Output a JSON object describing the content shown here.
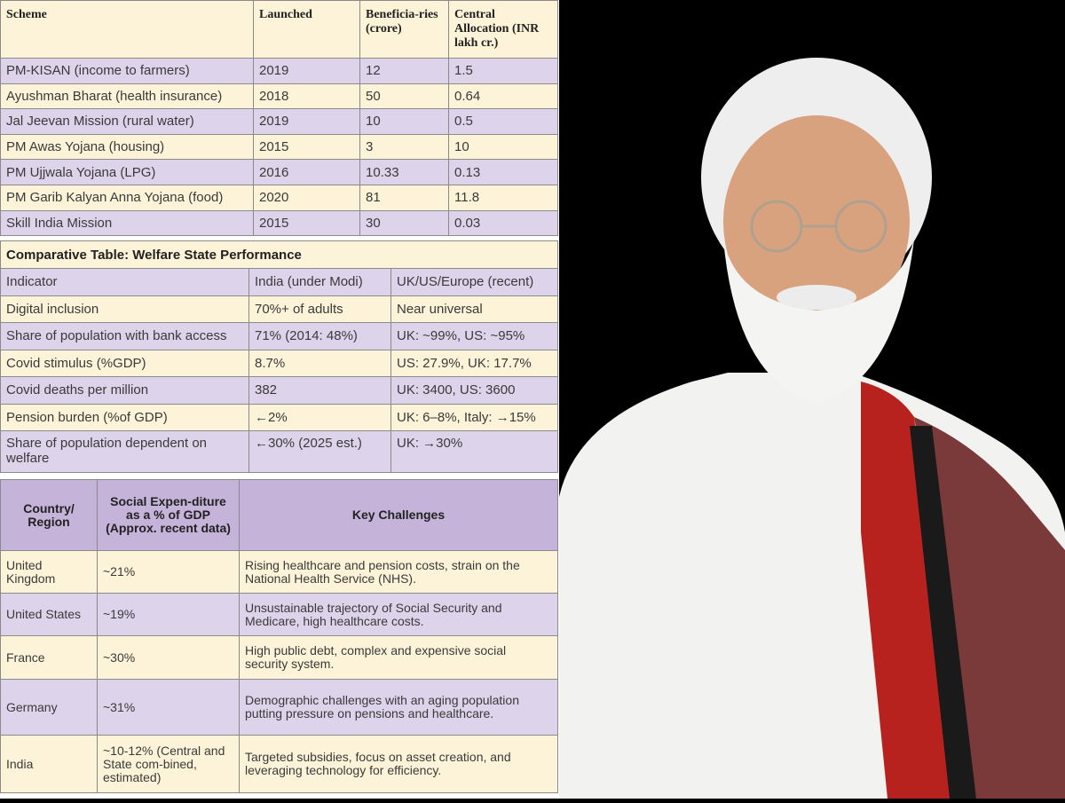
{
  "schemes_table": {
    "headers": [
      "Scheme",
      "Launched",
      "Beneficia-ries (crore)",
      "Central Allocation (INR lakh cr.)"
    ],
    "rows": [
      [
        "PM-KISAN (income to farmers)",
        "2019",
        "12",
        "1.5"
      ],
      [
        "Ayushman Bharat (health insurance)",
        "2018",
        "50",
        "0.64"
      ],
      [
        "Jal Jeevan Mission (rural water)",
        "2019",
        "10",
        "0.5"
      ],
      [
        "PM Awas Yojana (housing)",
        "2015",
        "3",
        "10"
      ],
      [
        "PM Ujjwala Yojana (LPG)",
        "2016",
        "10.33",
        "0.13"
      ],
      [
        "PM Garib Kalyan Anna Yojana (food)",
        "2020",
        "81",
        "11.8"
      ],
      [
        "Skill India Mission",
        "2015",
        "30",
        "0.03"
      ]
    ]
  },
  "comparative_table": {
    "title": "Comparative Table: Welfare State Performance",
    "headers": [
      "Indicator",
      "India (under Modi)",
      "UK/US/Europe (recent)"
    ],
    "rows": [
      [
        "Digital inclusion",
        "70%+ of adults",
        "Near universal"
      ],
      [
        "Share of population with bank access",
        "71% (2014: 48%)",
        "UK: ~99%, US: ~95%"
      ],
      [
        "Covid stimulus (%GDP)",
        "8.7%",
        "US: 27.9%, UK: 17.7%"
      ],
      [
        "Covid deaths per million",
        "382",
        "UK: 3400, US: 3600"
      ],
      [
        "Pension burden (%of GDP)",
        "←2%",
        "UK: 6–8%, Italy: →15%"
      ],
      [
        "Share of population dependent on welfare",
        "←30% (2025 est.)",
        "UK: →30%"
      ]
    ]
  },
  "social_table": {
    "headers": [
      "Country/ Region",
      "Social Expen-diture as a % of GDP (Approx. recent data)",
      "Key Challenges"
    ],
    "rows": [
      [
        "United Kingdom",
        "~21%",
        "Rising healthcare and pension costs, strain on the National Health Service (NHS)."
      ],
      [
        "United States",
        "~19%",
        "Unsustainable trajectory of Social Security and Medicare, high healthcare costs."
      ],
      [
        "France",
        "~30%",
        "High public debt, complex and expensive social security system."
      ],
      [
        "Germany",
        "~31%",
        "Demographic challenges with an aging population putting pressure on pensions and healthcare."
      ],
      [
        "India",
        "~10-12% (Central and State com-bined, estimated)",
        "Targeted subsidies, focus on asset creation, and leveraging technology for efficiency."
      ]
    ]
  },
  "colors": {
    "cream": "#fdf3d8",
    "lavender": "#ddd3ea",
    "header_purple": "#c5b3d9",
    "photo_background": "#000000"
  }
}
